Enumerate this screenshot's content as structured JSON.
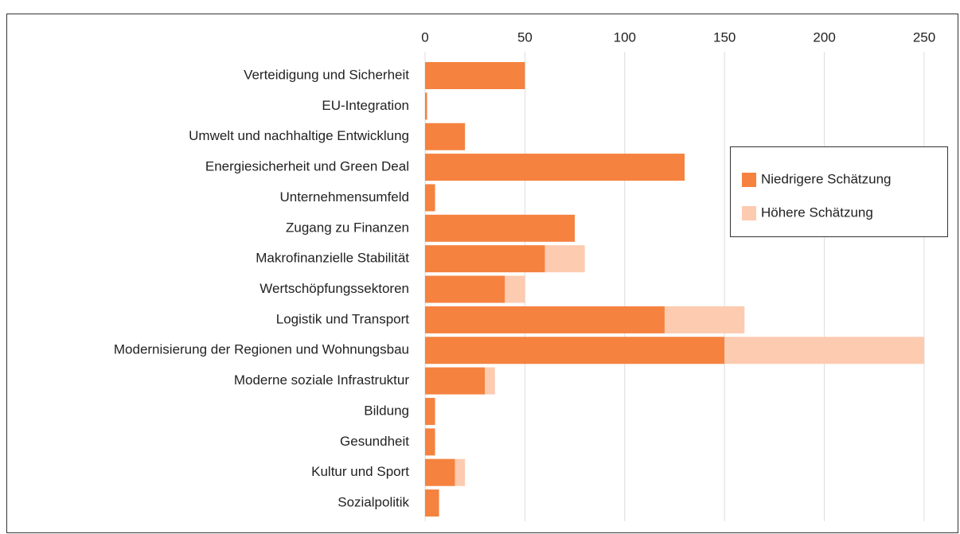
{
  "chart_data": {
    "type": "stacked_barh",
    "categories": [
      "Verteidigung und Sicherheit",
      "EU-Integration",
      "Umwelt und nachhaltige Entwicklung",
      "Energiesicherheit und Green Deal",
      "Unternehmensumfeld",
      "Zugang zu Finanzen",
      "Makrofinanzielle Stabilität",
      "Wertschöpfungssektoren",
      "Logistik und Transport",
      "Modernisierung der Regionen und Wohnungsbau",
      "Moderne soziale Infrastruktur",
      "Bildung",
      "Gesundheit",
      "Kultur und Sport",
      "Sozialpolitik"
    ],
    "series": [
      {
        "name": "Niedrigere Schätzung",
        "color": "#f5823f",
        "values": [
          50,
          1,
          20,
          130,
          5,
          75,
          60,
          40,
          120,
          150,
          30,
          5,
          5,
          15,
          7
        ]
      },
      {
        "name": "Höhere Schätzung",
        "color": "#fdcbb0",
        "values": [
          0,
          0,
          0,
          0,
          0,
          0,
          20,
          10,
          40,
          100,
          5,
          0,
          0,
          5,
          0
        ]
      }
    ],
    "xlim": [
      0,
      250
    ],
    "xticks": [
      0,
      50,
      100,
      150,
      200,
      250
    ],
    "grid": true,
    "legend": "right"
  }
}
